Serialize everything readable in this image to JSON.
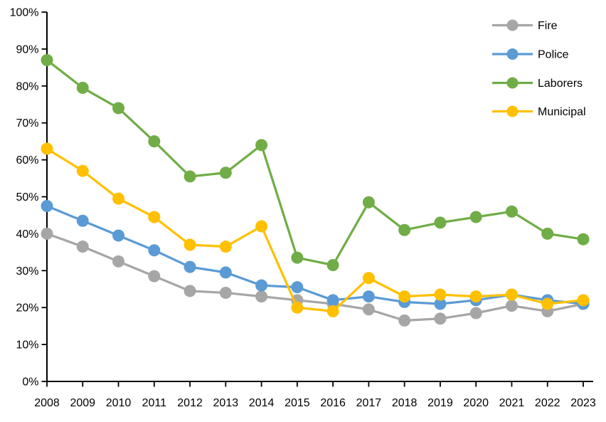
{
  "chart_data": {
    "type": "line",
    "title": "",
    "xlabel": "",
    "ylabel": "",
    "x": [
      "2008",
      "2009",
      "2010",
      "2011",
      "2012",
      "2013",
      "2014",
      "2015",
      "2016",
      "2017",
      "2018",
      "2019",
      "2020",
      "2021",
      "2022",
      "2023"
    ],
    "series": [
      {
        "name": "Fire",
        "color": "#a6a6a6",
        "values": [
          40,
          36.5,
          32.5,
          28.5,
          24.5,
          24,
          23,
          22,
          21,
          19.5,
          16.5,
          17,
          18.5,
          20.5,
          19,
          21
        ]
      },
      {
        "name": "Police",
        "color": "#5b9bd5",
        "values": [
          47.5,
          43.5,
          39.5,
          35.5,
          31,
          29.5,
          26,
          25.5,
          22,
          23,
          21.5,
          21,
          22,
          23.5,
          22,
          21
        ]
      },
      {
        "name": "Laborers",
        "color": "#70ad47",
        "values": [
          87,
          79.5,
          74,
          65,
          55.5,
          56.5,
          64,
          33.5,
          31.5,
          48.5,
          41,
          43,
          44.5,
          46,
          40,
          38.5
        ]
      },
      {
        "name": "Municipal",
        "color": "#ffc000",
        "values": [
          63,
          57,
          49.5,
          44.5,
          37,
          36.5,
          42,
          20,
          19,
          28,
          23,
          23.5,
          23,
          23.5,
          21,
          22
        ]
      }
    ],
    "ylim": [
      0,
      100
    ],
    "y_ticks": [
      "0%",
      "10%",
      "20%",
      "30%",
      "40%",
      "50%",
      "60%",
      "70%",
      "80%",
      "90%",
      "100%"
    ],
    "grid": false,
    "legend_position": "top-right",
    "axis_color": "#000000",
    "text_color": "#000000",
    "background_color": "#ffffff"
  }
}
